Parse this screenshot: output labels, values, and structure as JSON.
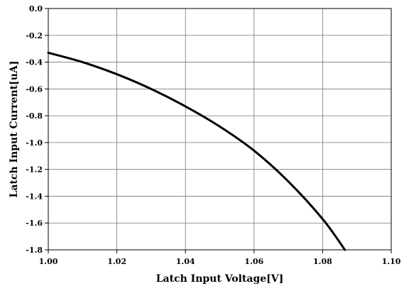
{
  "chart_data": {
    "type": "line",
    "title": "",
    "xlabel": "Latch Input Voltage[V]",
    "ylabel": "Latch Input Current[uA]",
    "xlim": [
      1.0,
      1.1
    ],
    "ylim": [
      -1.8,
      0.0
    ],
    "x_ticks": [
      1.0,
      1.02,
      1.04,
      1.06,
      1.08,
      1.1
    ],
    "x_tick_labels": [
      "1.00",
      "1.02",
      "1.04",
      "1.06",
      "1.08",
      "1.10"
    ],
    "y_ticks": [
      0.0,
      -0.2,
      -0.4,
      -0.6,
      -0.8,
      -1.0,
      -1.2,
      -1.4,
      -1.6,
      -1.8
    ],
    "y_tick_labels": [
      "0.0",
      "-0.2",
      "-0.4",
      "-0.6",
      "-0.8",
      "-1.0",
      "-1.2",
      "-1.4",
      "-1.6",
      "-1.8"
    ],
    "grid": true,
    "line_color": "#000000",
    "series": [
      {
        "x": [
          1.0,
          1.01,
          1.02,
          1.03,
          1.04,
          1.05,
          1.06,
          1.07,
          1.08,
          1.0865
        ],
        "y": [
          -0.33,
          -0.4,
          -0.49,
          -0.6,
          -0.73,
          -0.88,
          -1.06,
          -1.29,
          -1.57,
          -1.8
        ]
      }
    ]
  }
}
